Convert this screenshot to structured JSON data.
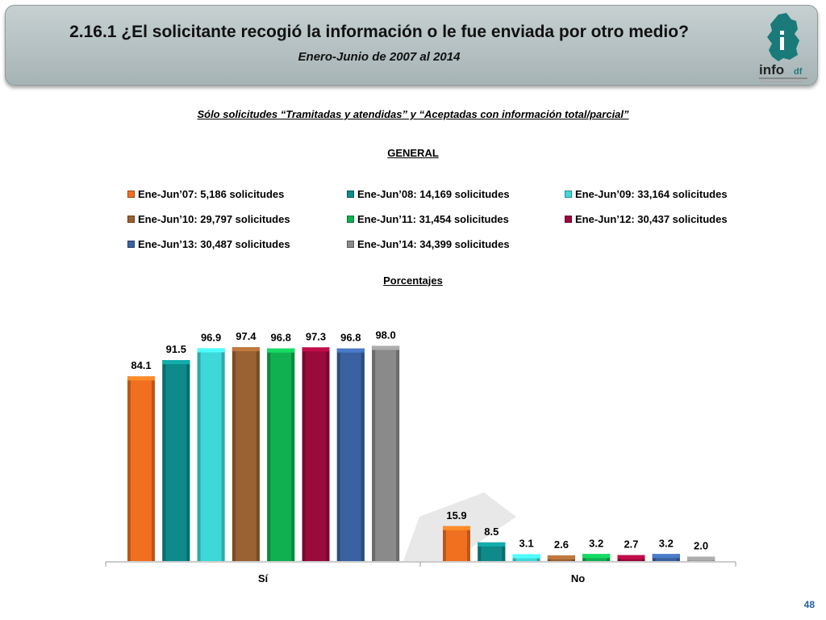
{
  "header": {
    "title": "2.16.1 ¿El solicitante recogió la información o le fue enviada por otro medio?",
    "subtitle": "Enero-Junio de 2007 al 2014",
    "logo_text": "info",
    "logo_suffix": "df"
  },
  "note": "Sólo solicitudes “Tramitadas y atendidas” y “Aceptadas con información total/parcial”",
  "section_label": "GENERAL",
  "units_label": "Porcentajes",
  "page_number": "48",
  "chart_data": {
    "type": "bar",
    "categories": [
      "Sí",
      "No"
    ],
    "ylim": [
      0,
      100
    ],
    "grid": false,
    "legend_position": "top",
    "series": [
      {
        "name": "Ene-Jun’07: 5,186 solicitudes",
        "color": "#f07020",
        "values": [
          84.1,
          15.9
        ]
      },
      {
        "name": "Ene-Jun’08: 14,169 solicitudes",
        "color": "#0e8a8a",
        "values": [
          91.5,
          8.5
        ]
      },
      {
        "name": "Ene-Jun’09: 33,164 solicitudes",
        "color": "#3fd8d8",
        "values": [
          96.9,
          3.1
        ]
      },
      {
        "name": "Ene-Jun’10: 29,797 solicitudes",
        "color": "#9a6132",
        "values": [
          97.4,
          2.6
        ]
      },
      {
        "name": "Ene-Jun’11: 31,454 solicitudes",
        "color": "#10b050",
        "values": [
          96.8,
          3.2
        ]
      },
      {
        "name": "Ene-Jun’12: 30,437 solicitudes",
        "color": "#9a0a3a",
        "values": [
          97.3,
          2.7
        ]
      },
      {
        "name": "Ene-Jun’13: 30,487 solicitudes",
        "color": "#3a62a0",
        "values": [
          96.8,
          3.2
        ]
      },
      {
        "name": "Ene-Jun’14: 34,399 solicitudes",
        "color": "#8a8a8a",
        "values": [
          98.0,
          2.0
        ]
      }
    ],
    "value_labels": [
      [
        "84.1",
        "15.9"
      ],
      [
        "91.5",
        "8.5"
      ],
      [
        "96.9",
        "3.1"
      ],
      [
        "97.4",
        "2.6"
      ],
      [
        "96.8",
        "3.2"
      ],
      [
        "97.3",
        "2.7"
      ],
      [
        "96.8",
        "3.2"
      ],
      [
        "98.0",
        "2.0"
      ]
    ]
  }
}
